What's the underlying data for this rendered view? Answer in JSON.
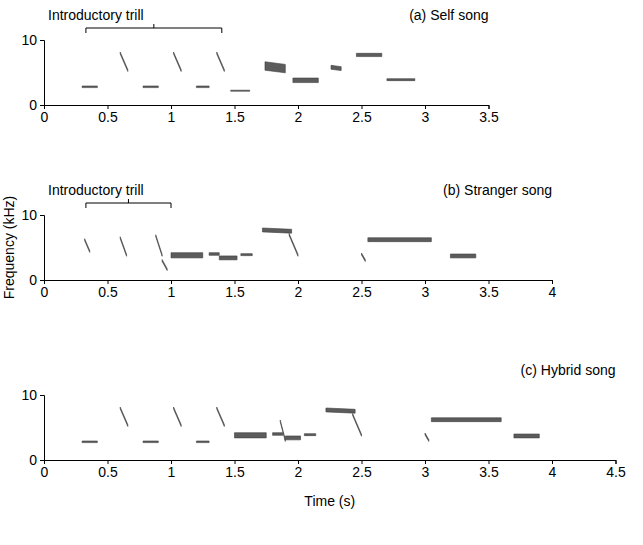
{
  "chart_data": [
    {
      "type": "spectrogram",
      "title": "(a) Self song",
      "color": "#404040",
      "annotation": {
        "text": "Introductory trill",
        "x": [
          0.33,
          1.4
        ]
      },
      "xlim": [
        0,
        3.5
      ],
      "xticks": [
        0,
        0.5,
        1,
        1.5,
        2,
        2.5,
        3,
        3.5
      ],
      "ylim": [
        0,
        10
      ],
      "yticks": [
        0,
        10
      ],
      "syllables": [
        {
          "t": [
            0.3,
            0.42
          ],
          "f": [
            2.8,
            2.8
          ],
          "band": 0.25
        },
        {
          "t": [
            0.6,
            0.66
          ],
          "f": [
            8.0,
            5.3
          ],
          "band": 0.3
        },
        {
          "t": [
            0.78,
            0.9
          ],
          "f": [
            2.8,
            2.8
          ],
          "band": 0.25
        },
        {
          "t": [
            1.02,
            1.08
          ],
          "f": [
            8.0,
            5.3
          ],
          "band": 0.3
        },
        {
          "t": [
            1.2,
            1.3
          ],
          "f": [
            2.8,
            2.8
          ],
          "band": 0.25
        },
        {
          "t": [
            1.36,
            1.42
          ],
          "f": [
            8.0,
            5.3
          ],
          "band": 0.3
        },
        {
          "t": [
            1.47,
            1.62
          ],
          "f": [
            2.2,
            2.2
          ],
          "band": 0.15
        },
        {
          "t": [
            1.74,
            1.9
          ],
          "f": [
            6.0,
            5.6
          ],
          "band": 1.3
        },
        {
          "t": [
            1.96,
            2.16
          ],
          "f": [
            3.8,
            3.8
          ],
          "band": 0.7
        },
        {
          "t": [
            2.26,
            2.34
          ],
          "f": [
            5.8,
            5.6
          ],
          "band": 0.6
        },
        {
          "t": [
            2.46,
            2.66
          ],
          "f": [
            7.7,
            7.7
          ],
          "band": 0.5
        },
        {
          "t": [
            2.7,
            2.92
          ],
          "f": [
            3.9,
            3.9
          ],
          "band": 0.3
        }
      ]
    },
    {
      "type": "spectrogram",
      "title": "(b) Stranger song",
      "color": "#404040",
      "annotation": {
        "text": "Introductory trill",
        "x": [
          0.33,
          1.0
        ]
      },
      "ylabel": "Frequency (kHz)",
      "xlim": [
        0,
        4
      ],
      "xticks": [
        0,
        0.5,
        1,
        1.5,
        2,
        2.5,
        3,
        3.5,
        4
      ],
      "ylim": [
        0,
        10
      ],
      "yticks": [
        0,
        10
      ],
      "syllables": [
        {
          "t": [
            0.32,
            0.36
          ],
          "f": [
            6.2,
            4.4
          ],
          "band": 0.3
        },
        {
          "t": [
            0.6,
            0.65
          ],
          "f": [
            6.5,
            3.8
          ],
          "band": 0.3
        },
        {
          "t": [
            0.88,
            0.93
          ],
          "f": [
            6.8,
            3.8
          ],
          "band": 0.3
        },
        {
          "t": [
            0.93,
            0.97
          ],
          "f": [
            3.0,
            1.6
          ],
          "band": 0.3
        },
        {
          "t": [
            1.0,
            1.25
          ],
          "f": [
            3.8,
            3.8
          ],
          "band": 0.8
        },
        {
          "t": [
            1.3,
            1.38
          ],
          "f": [
            4.0,
            4.0
          ],
          "band": 0.4
        },
        {
          "t": [
            1.38,
            1.52
          ],
          "f": [
            3.4,
            3.4
          ],
          "band": 0.6
        },
        {
          "t": [
            1.55,
            1.64
          ],
          "f": [
            3.9,
            3.9
          ],
          "band": 0.3
        },
        {
          "t": [
            1.72,
            1.95
          ],
          "f": [
            7.7,
            7.5
          ],
          "band": 0.6
        },
        {
          "t": [
            1.93,
            2.0
          ],
          "f": [
            7.0,
            3.8
          ],
          "band": 0.3
        },
        {
          "t": [
            2.5,
            2.53
          ],
          "f": [
            4.0,
            3.0
          ],
          "band": 0.3
        },
        {
          "t": [
            2.55,
            3.05
          ],
          "f": [
            6.2,
            6.2
          ],
          "band": 0.6
        },
        {
          "t": [
            3.2,
            3.4
          ],
          "f": [
            3.7,
            3.7
          ],
          "band": 0.6
        }
      ]
    },
    {
      "type": "spectrogram",
      "title": "(c) Hybrid song",
      "color": "#404040",
      "xlabel": "Time (s)",
      "xlim": [
        0,
        4.5
      ],
      "xticks": [
        0,
        0.5,
        1,
        1.5,
        2,
        2.5,
        3,
        3.5,
        4,
        4.5
      ],
      "ylim": [
        0,
        10
      ],
      "yticks": [
        0,
        10
      ],
      "syllables": [
        {
          "t": [
            0.3,
            0.42
          ],
          "f": [
            2.8,
            2.8
          ],
          "band": 0.25
        },
        {
          "t": [
            0.6,
            0.66
          ],
          "f": [
            8.0,
            5.3
          ],
          "band": 0.3
        },
        {
          "t": [
            0.78,
            0.9
          ],
          "f": [
            2.8,
            2.8
          ],
          "band": 0.25
        },
        {
          "t": [
            1.02,
            1.08
          ],
          "f": [
            8.0,
            5.3
          ],
          "band": 0.3
        },
        {
          "t": [
            1.2,
            1.3
          ],
          "f": [
            2.8,
            2.8
          ],
          "band": 0.25
        },
        {
          "t": [
            1.36,
            1.42
          ],
          "f": [
            8.0,
            5.3
          ],
          "band": 0.3
        },
        {
          "t": [
            1.5,
            1.75
          ],
          "f": [
            3.8,
            3.8
          ],
          "band": 0.8
        },
        {
          "t": [
            1.8,
            1.88
          ],
          "f": [
            4.0,
            4.0
          ],
          "band": 0.4
        },
        {
          "t": [
            1.86,
            1.9
          ],
          "f": [
            6.0,
            3.0
          ],
          "band": 0.3
        },
        {
          "t": [
            1.9,
            2.02
          ],
          "f": [
            3.4,
            3.4
          ],
          "band": 0.6
        },
        {
          "t": [
            2.05,
            2.14
          ],
          "f": [
            3.9,
            3.9
          ],
          "band": 0.3
        },
        {
          "t": [
            2.22,
            2.45
          ],
          "f": [
            7.7,
            7.5
          ],
          "band": 0.6
        },
        {
          "t": [
            2.43,
            2.5
          ],
          "f": [
            7.0,
            3.8
          ],
          "band": 0.3
        },
        {
          "t": [
            3.0,
            3.03
          ],
          "f": [
            4.0,
            3.0
          ],
          "band": 0.3
        },
        {
          "t": [
            3.05,
            3.6
          ],
          "f": [
            6.2,
            6.2
          ],
          "band": 0.6
        },
        {
          "t": [
            3.7,
            3.9
          ],
          "f": [
            3.7,
            3.7
          ],
          "band": 0.6
        }
      ]
    }
  ]
}
